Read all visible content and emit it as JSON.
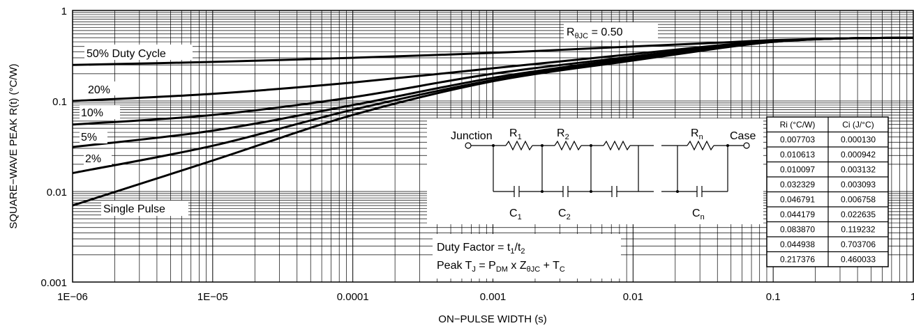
{
  "chart_data": {
    "type": "line",
    "x_scale": "log",
    "y_scale": "log",
    "xlim": [
      1e-06,
      1
    ],
    "ylim": [
      0.001,
      1
    ],
    "grid": true,
    "xlabel": "ON−PULSE WIDTH (s)",
    "ylabel": "SQUARE−WAVE PEAK R(t) (°C/W)",
    "x_ticks": [
      {
        "value": 1e-06,
        "label": "1E−06"
      },
      {
        "value": 1e-05,
        "label": "1E−05"
      },
      {
        "value": 0.0001,
        "label": "0.0001"
      },
      {
        "value": 0.001,
        "label": "0.001"
      },
      {
        "value": 0.01,
        "label": "0.01"
      },
      {
        "value": 0.1,
        "label": "0.1"
      },
      {
        "value": 1,
        "label": "1"
      }
    ],
    "y_ticks": [
      {
        "value": 0.001,
        "label": "0.001"
      },
      {
        "value": 0.01,
        "label": "0.01"
      },
      {
        "value": 0.1,
        "label": "0.1"
      },
      {
        "value": 1,
        "label": "1"
      }
    ],
    "series": [
      {
        "name": "50% Duty Cycle",
        "points": [
          [
            1e-06,
            0.25
          ],
          [
            1e-05,
            0.27
          ],
          [
            0.0001,
            0.3
          ],
          [
            0.001,
            0.34
          ],
          [
            0.01,
            0.4
          ],
          [
            0.04,
            0.44
          ],
          [
            0.1,
            0.47
          ],
          [
            0.3,
            0.49
          ],
          [
            1,
            0.5
          ]
        ]
      },
      {
        "name": "20%",
        "points": [
          [
            1e-06,
            0.1
          ],
          [
            1e-05,
            0.12
          ],
          [
            0.0001,
            0.16
          ],
          [
            0.001,
            0.23
          ],
          [
            0.01,
            0.33
          ],
          [
            0.04,
            0.41
          ],
          [
            0.1,
            0.46
          ],
          [
            0.3,
            0.49
          ],
          [
            1,
            0.5
          ]
        ]
      },
      {
        "name": "10%",
        "points": [
          [
            1e-06,
            0.055
          ],
          [
            1e-05,
            0.07
          ],
          [
            0.0001,
            0.11
          ],
          [
            0.001,
            0.2
          ],
          [
            0.01,
            0.31
          ],
          [
            0.04,
            0.4
          ],
          [
            0.1,
            0.46
          ],
          [
            0.3,
            0.49
          ],
          [
            1,
            0.5
          ]
        ]
      },
      {
        "name": "5%",
        "points": [
          [
            1e-06,
            0.031
          ],
          [
            1e-05,
            0.047
          ],
          [
            0.0001,
            0.09
          ],
          [
            0.001,
            0.18
          ],
          [
            0.01,
            0.3
          ],
          [
            0.04,
            0.39
          ],
          [
            0.1,
            0.455
          ],
          [
            0.3,
            0.49
          ],
          [
            1,
            0.5
          ]
        ]
      },
      {
        "name": "2%",
        "points": [
          [
            1e-06,
            0.016
          ],
          [
            1e-05,
            0.032
          ],
          [
            0.0001,
            0.08
          ],
          [
            0.001,
            0.17
          ],
          [
            0.01,
            0.29
          ],
          [
            0.04,
            0.385
          ],
          [
            0.1,
            0.45
          ],
          [
            0.3,
            0.49
          ],
          [
            1,
            0.5
          ]
        ]
      },
      {
        "name": "Single Pulse",
        "points": [
          [
            1e-06,
            0.007
          ],
          [
            1e-05,
            0.022
          ],
          [
            0.0001,
            0.07
          ],
          [
            0.001,
            0.165
          ],
          [
            0.01,
            0.28
          ],
          [
            0.04,
            0.38
          ],
          [
            0.1,
            0.45
          ],
          [
            0.3,
            0.49
          ],
          [
            1,
            0.5
          ]
        ]
      }
    ],
    "annotations": {
      "rtheta": "RθJC = 0.50",
      "duty_factor": "Duty Factor = t1/t2",
      "peak_tj": "Peak TJ = PDM x ZθJC + TC"
    },
    "circuit": {
      "junction": "Junction",
      "case": "Case",
      "r1": "R1",
      "r2": "R2",
      "rn": "Rn",
      "c1": "C1",
      "c2": "C2",
      "cn": "Cn"
    },
    "rc_table": {
      "headers": [
        "Ri (°C/W)",
        "Ci (J/°C)"
      ],
      "rows": [
        [
          "0.007703",
          "0.000130"
        ],
        [
          "0.010613",
          "0.000942"
        ],
        [
          "0.010097",
          "0.003132"
        ],
        [
          "0.032329",
          "0.003093"
        ],
        [
          "0.046791",
          "0.006758"
        ],
        [
          "0.044179",
          "0.022635"
        ],
        [
          "0.083870",
          "0.119232"
        ],
        [
          "0.044938",
          "0.703706"
        ],
        [
          "0.217376",
          "0.460033"
        ]
      ]
    }
  }
}
